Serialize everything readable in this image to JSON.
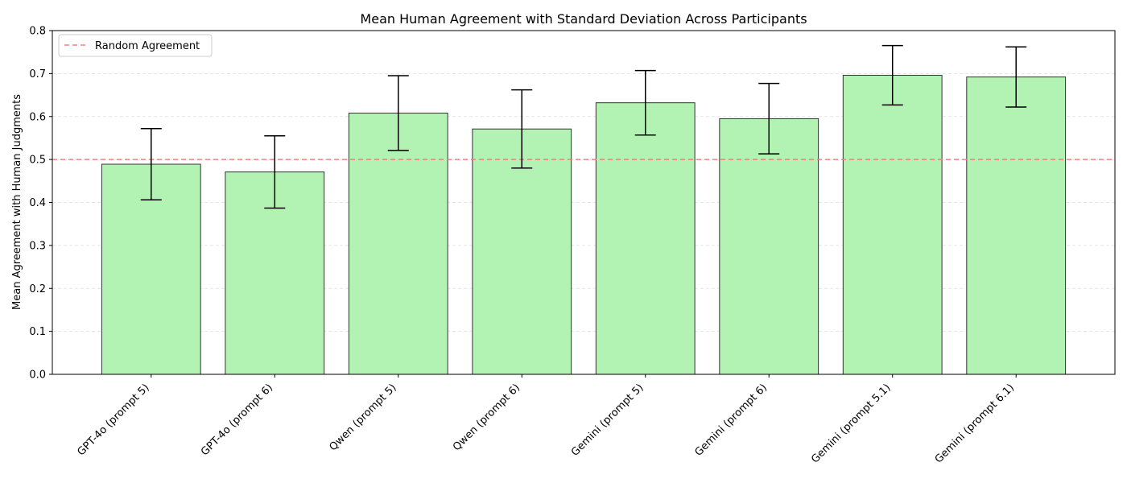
{
  "chart_data": {
    "type": "bar",
    "title": "Mean Human Agreement with Standard Deviation Across Participants",
    "xlabel": "",
    "ylabel": "Mean Agreement with Human Judgments",
    "ylim": [
      0,
      0.8
    ],
    "yticks": [
      0.0,
      0.1,
      0.2,
      0.3,
      0.4,
      0.5,
      0.6,
      0.7,
      0.8
    ],
    "ytick_labels": [
      "0.0",
      "0.1",
      "0.2",
      "0.3",
      "0.4",
      "0.5",
      "0.6",
      "0.7",
      "0.8"
    ],
    "categories": [
      "GPT-4o (prompt 5)",
      "GPT-4o (prompt 6)",
      "Qwen (prompt 5)",
      "Qwen (prompt 6)",
      "Gemini (prompt 5)",
      "Gemini (prompt 6)",
      "Gemini (prompt 5.1)",
      "Gemini (prompt 6.1)"
    ],
    "values": [
      0.489,
      0.471,
      0.608,
      0.571,
      0.632,
      0.595,
      0.696,
      0.692
    ],
    "errors": [
      0.083,
      0.084,
      0.087,
      0.091,
      0.075,
      0.082,
      0.069,
      0.07
    ],
    "reference_line": {
      "value": 0.5,
      "label": "Random Agreement",
      "style": "dashed",
      "color": "#f08080"
    },
    "bar_color": "#b2f2b2",
    "bar_edge_color": "#333333",
    "grid": {
      "y": true,
      "style": "dashed"
    },
    "legend": {
      "placement": "top-left",
      "entries": [
        "Random Agreement"
      ]
    }
  }
}
